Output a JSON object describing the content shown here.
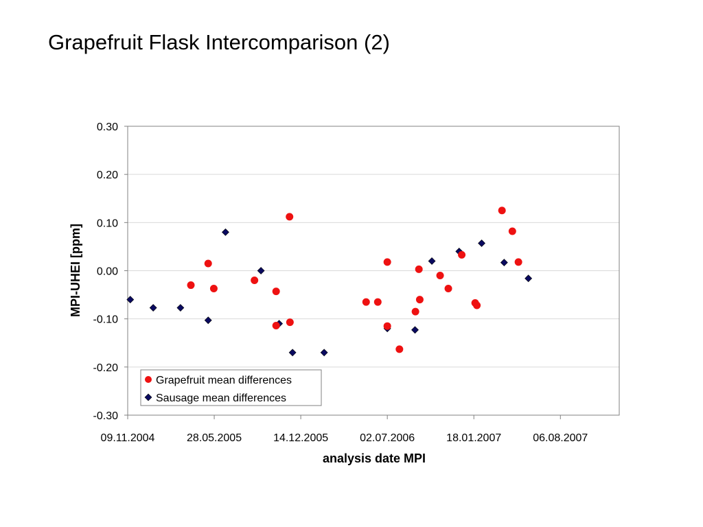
{
  "slide": {
    "title": "Grapefruit Flask Intercomparison (2)"
  },
  "colors": {
    "grapefruit": "#ee1111",
    "sausage": "#0a0a60",
    "gridline": "#d9d9d9",
    "axis": "#808080"
  },
  "chart_data": {
    "type": "scatter",
    "title": "",
    "xlabel": "analysis date MPI",
    "ylabel": "MPI-UHEI [ppm]",
    "xlim": [
      "2004-11-09",
      "2007-12-20"
    ],
    "ylim": [
      -0.3,
      0.3
    ],
    "x_ticks": [
      "09.11.2004",
      "28.05.2005",
      "14.12.2005",
      "02.07.2006",
      "18.01.2007",
      "06.08.2007"
    ],
    "x_tick_dates": [
      "2004-11-09",
      "2005-05-28",
      "2005-12-14",
      "2006-07-02",
      "2007-01-18",
      "2007-08-06"
    ],
    "y_ticks": [
      "0.30",
      "0.20",
      "0.10",
      "0.00",
      "-0.10",
      "-0.20",
      "-0.30"
    ],
    "y_tick_values": [
      0.3,
      0.2,
      0.1,
      0.0,
      -0.1,
      -0.2,
      -0.3
    ],
    "grid": "horizontal",
    "legend_position": "bottom-left",
    "series": [
      {
        "name": "Grapefruit mean differences",
        "marker": "circle",
        "color": "#ee1111",
        "points": [
          {
            "x": "2005-04-04",
            "y": -0.03
          },
          {
            "x": "2005-05-14",
            "y": 0.015
          },
          {
            "x": "2005-05-27",
            "y": -0.037
          },
          {
            "x": "2005-08-29",
            "y": -0.02
          },
          {
            "x": "2005-10-18",
            "y": -0.043
          },
          {
            "x": "2005-10-18",
            "y": -0.114
          },
          {
            "x": "2005-11-18",
            "y": 0.112
          },
          {
            "x": "2005-11-19",
            "y": -0.107
          },
          {
            "x": "2006-05-14",
            "y": -0.065
          },
          {
            "x": "2006-06-10",
            "y": -0.065
          },
          {
            "x": "2006-07-02",
            "y": 0.018
          },
          {
            "x": "2006-07-02",
            "y": -0.115
          },
          {
            "x": "2006-07-30",
            "y": -0.163
          },
          {
            "x": "2006-09-05",
            "y": -0.085
          },
          {
            "x": "2006-09-13",
            "y": 0.003
          },
          {
            "x": "2006-09-15",
            "y": -0.06
          },
          {
            "x": "2006-11-01",
            "y": -0.01
          },
          {
            "x": "2006-11-20",
            "y": -0.037
          },
          {
            "x": "2006-12-21",
            "y": 0.033
          },
          {
            "x": "2007-01-21",
            "y": -0.067
          },
          {
            "x": "2007-01-25",
            "y": -0.072
          },
          {
            "x": "2007-03-24",
            "y": 0.125
          },
          {
            "x": "2007-04-17",
            "y": 0.082
          },
          {
            "x": "2007-05-01",
            "y": 0.018
          }
        ]
      },
      {
        "name": "Sausage mean differences",
        "marker": "diamond",
        "color": "#0a0a60",
        "points": [
          {
            "x": "2004-11-15",
            "y": -0.06
          },
          {
            "x": "2005-01-07",
            "y": -0.077
          },
          {
            "x": "2005-03-11",
            "y": -0.077
          },
          {
            "x": "2005-05-14",
            "y": -0.103
          },
          {
            "x": "2005-06-23",
            "y": 0.08
          },
          {
            "x": "2005-09-13",
            "y": 0.0
          },
          {
            "x": "2005-10-25",
            "y": -0.11
          },
          {
            "x": "2005-11-25",
            "y": -0.17
          },
          {
            "x": "2006-02-06",
            "y": -0.17
          },
          {
            "x": "2006-07-02",
            "y": -0.12
          },
          {
            "x": "2006-09-04",
            "y": -0.123
          },
          {
            "x": "2006-10-13",
            "y": 0.02
          },
          {
            "x": "2006-12-15",
            "y": 0.04
          },
          {
            "x": "2007-02-05",
            "y": 0.057
          },
          {
            "x": "2007-03-29",
            "y": 0.017
          },
          {
            "x": "2007-05-24",
            "y": -0.016
          }
        ]
      }
    ]
  }
}
